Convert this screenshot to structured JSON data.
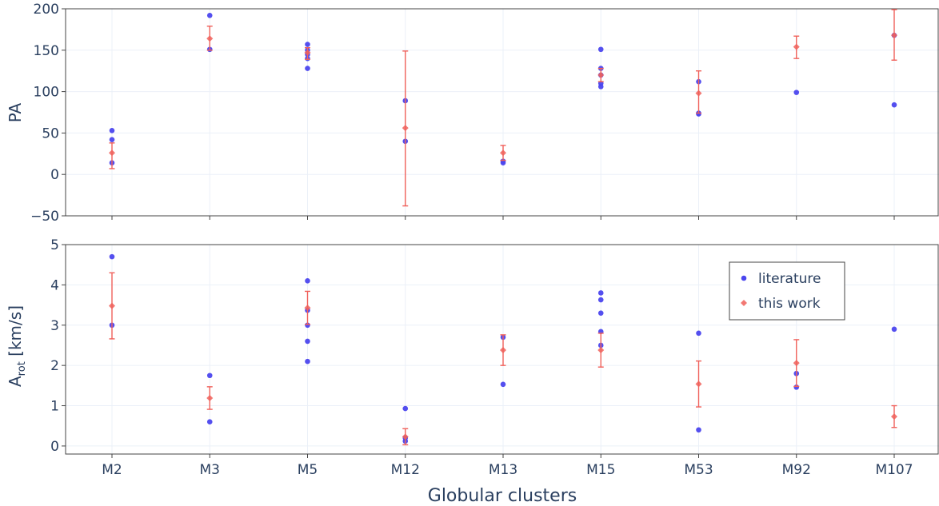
{
  "chart_data": {
    "type": "scatter",
    "xlabel": "Globular clusters",
    "categories": [
      "M2",
      "M3",
      "M5",
      "M12",
      "M13",
      "M15",
      "M53",
      "M92",
      "M107"
    ],
    "colors": {
      "literature": "#4b46ee",
      "this_work": "#f0605a",
      "overlap": "#a0206a"
    },
    "legend": {
      "position": "right",
      "entries": [
        "literature",
        "this work"
      ]
    },
    "panels": [
      {
        "ylabel": "PA",
        "ylim": [
          -50,
          200
        ],
        "yticks": [
          -50,
          0,
          50,
          100,
          150,
          200
        ],
        "series": [
          {
            "name": "literature",
            "marker": "circle",
            "points": [
              {
                "x": "M2",
                "y": 53
              },
              {
                "x": "M2",
                "y": 42
              },
              {
                "x": "M2",
                "y": 14
              },
              {
                "x": "M3",
                "y": 192
              },
              {
                "x": "M3",
                "y": 151
              },
              {
                "x": "M5",
                "y": 157
              },
              {
                "x": "M5",
                "y": 150
              },
              {
                "x": "M5",
                "y": 145
              },
              {
                "x": "M5",
                "y": 140
              },
              {
                "x": "M5",
                "y": 128
              },
              {
                "x": "M12",
                "y": 89
              },
              {
                "x": "M12",
                "y": 40
              },
              {
                "x": "M13",
                "y": 16
              },
              {
                "x": "M13",
                "y": 14
              },
              {
                "x": "M15",
                "y": 151
              },
              {
                "x": "M15",
                "y": 128
              },
              {
                "x": "M15",
                "y": 120
              },
              {
                "x": "M15",
                "y": 110
              },
              {
                "x": "M15",
                "y": 106
              },
              {
                "x": "M53",
                "y": 112
              },
              {
                "x": "M53",
                "y": 74
              },
              {
                "x": "M53",
                "y": 73
              },
              {
                "x": "M92",
                "y": 99
              },
              {
                "x": "M107",
                "y": 168
              },
              {
                "x": "M107",
                "y": 84
              }
            ]
          },
          {
            "name": "this work",
            "marker": "diamond",
            "points": [
              {
                "x": "M2",
                "y": 26,
                "err_low": 19,
                "err_high": 12
              },
              {
                "x": "M3",
                "y": 164,
                "err_low": 14,
                "err_high": 15
              },
              {
                "x": "M5",
                "y": 147,
                "err_low": 8,
                "err_high": 6
              },
              {
                "x": "M12",
                "y": 56,
                "err_low": 94,
                "err_high": 93
              },
              {
                "x": "M13",
                "y": 26,
                "err_low": 9,
                "err_high": 9
              },
              {
                "x": "M15",
                "y": 120,
                "err_low": 8,
                "err_high": 8
              },
              {
                "x": "M53",
                "y": 98,
                "err_low": 24,
                "err_high": 27
              },
              {
                "x": "M92",
                "y": 154,
                "err_low": 14,
                "err_high": 13
              },
              {
                "x": "M107",
                "y": 168,
                "err_low": 30,
                "err_high": 31
              }
            ]
          }
        ]
      },
      {
        "ylabel": "A",
        "ylabel_sub": "rot",
        "ylabel_unit": " [km/s]",
        "ylim": [
          -0.2,
          5
        ],
        "yticks": [
          0,
          1,
          2,
          3,
          4,
          5
        ],
        "series": [
          {
            "name": "literature",
            "marker": "circle",
            "points": [
              {
                "x": "M2",
                "y": 4.7
              },
              {
                "x": "M2",
                "y": 3.0
              },
              {
                "x": "M3",
                "y": 1.75
              },
              {
                "x": "M3",
                "y": 0.6
              },
              {
                "x": "M5",
                "y": 4.1
              },
              {
                "x": "M5",
                "y": 3.37
              },
              {
                "x": "M5",
                "y": 3.0
              },
              {
                "x": "M5",
                "y": 2.6
              },
              {
                "x": "M5",
                "y": 2.1
              },
              {
                "x": "M12",
                "y": 0.93
              },
              {
                "x": "M12",
                "y": 0.2
              },
              {
                "x": "M12",
                "y": 0.12
              },
              {
                "x": "M13",
                "y": 2.7
              },
              {
                "x": "M13",
                "y": 1.53
              },
              {
                "x": "M15",
                "y": 3.8
              },
              {
                "x": "M15",
                "y": 3.63
              },
              {
                "x": "M15",
                "y": 3.3
              },
              {
                "x": "M15",
                "y": 2.84
              },
              {
                "x": "M15",
                "y": 2.5
              },
              {
                "x": "M53",
                "y": 2.8
              },
              {
                "x": "M53",
                "y": 0.4
              },
              {
                "x": "M92",
                "y": 1.8
              },
              {
                "x": "M92",
                "y": 1.46
              },
              {
                "x": "M107",
                "y": 2.9
              }
            ]
          },
          {
            "name": "this work",
            "marker": "diamond",
            "points": [
              {
                "x": "M2",
                "y": 3.48,
                "err_low": 0.82,
                "err_high": 0.82
              },
              {
                "x": "M3",
                "y": 1.19,
                "err_low": 0.28,
                "err_high": 0.28
              },
              {
                "x": "M5",
                "y": 3.43,
                "err_low": 0.41,
                "err_high": 0.41
              },
              {
                "x": "M12",
                "y": 0.23,
                "err_low": 0.2,
                "err_high": 0.2
              },
              {
                "x": "M13",
                "y": 2.38,
                "err_low": 0.38,
                "err_high": 0.38
              },
              {
                "x": "M15",
                "y": 2.38,
                "err_low": 0.42,
                "err_high": 0.42
              },
              {
                "x": "M53",
                "y": 1.54,
                "err_low": 0.57,
                "err_high": 0.57
              },
              {
                "x": "M92",
                "y": 2.06,
                "err_low": 0.58,
                "err_high": 0.58
              },
              {
                "x": "M107",
                "y": 0.73,
                "err_low": 0.27,
                "err_high": 0.27
              }
            ]
          }
        ]
      }
    ]
  }
}
